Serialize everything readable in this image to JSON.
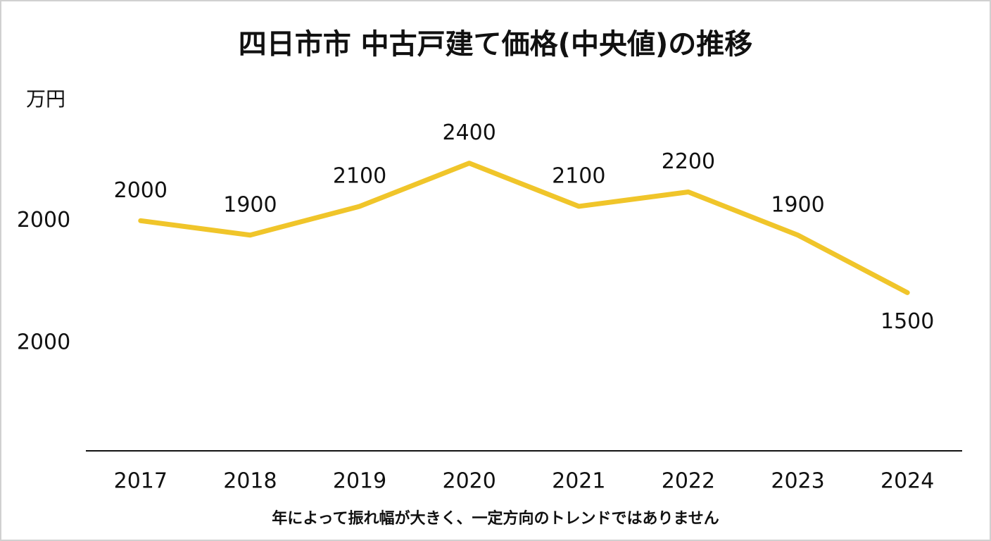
{
  "chart_data": {
    "type": "line",
    "title": "四日市市 中古戸建て価格(中央値)の推移",
    "y_axis_label": "万円",
    "categories": [
      "2017",
      "2018",
      "2019",
      "2020",
      "2021",
      "2022",
      "2023",
      "2024"
    ],
    "series": [
      {
        "name": "中古戸建て価格(中央値)",
        "color": "#f0c52a",
        "values": [
          2000,
          1900,
          2100,
          2400,
          2100,
          2200,
          1900,
          1500
        ]
      }
    ],
    "ylim": [
      400,
      2800
    ],
    "yticks": [
      2000
    ],
    "annotations": [
      "2000"
    ],
    "note": "年によって振れ幅が大きく、一定方向のトレンドではありません",
    "grid": false
  }
}
